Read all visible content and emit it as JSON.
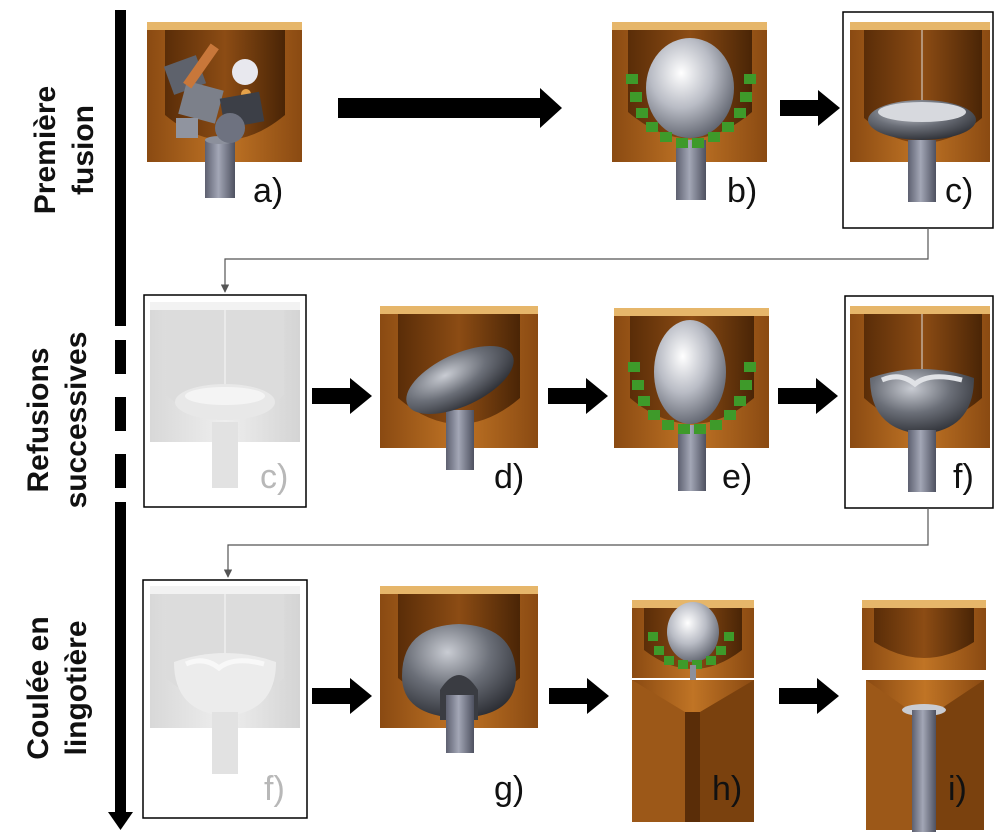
{
  "sections": [
    {
      "line1": "Première",
      "line2": "fusion"
    },
    {
      "line1": "Refusions",
      "line2": "successives"
    },
    {
      "line1": "Coulée en",
      "line2": "lingotière"
    }
  ],
  "steps": {
    "a": "a)",
    "b": "b)",
    "c": "c)",
    "c2": "c)",
    "d": "d)",
    "e": "e)",
    "f": "f)",
    "f2": "f)",
    "g": "g)",
    "h": "h)",
    "i": "i)"
  },
  "colors": {
    "crucible": "#b5651d",
    "crucible_dark": "#7a3f0c",
    "brick_top": "#e6b66a",
    "metal": "#a9adb8",
    "coil": "#3e9a2a",
    "arrow": "#000000"
  }
}
